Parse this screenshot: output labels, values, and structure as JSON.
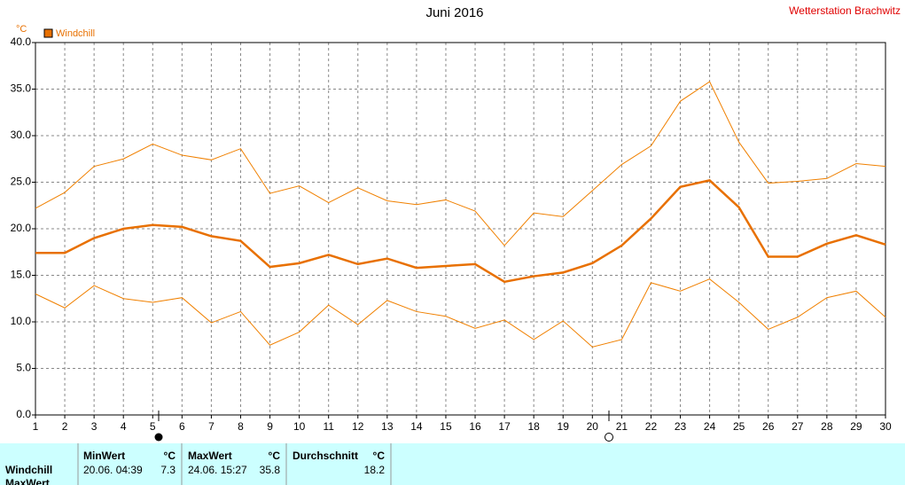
{
  "chart_data": {
    "type": "line",
    "title": "Juni 2016",
    "station": "Wetterstation Brachwitz",
    "y_unit": "°C",
    "x": [
      1,
      2,
      3,
      4,
      5,
      6,
      7,
      8,
      9,
      10,
      11,
      12,
      13,
      14,
      15,
      16,
      17,
      18,
      19,
      20,
      21,
      22,
      23,
      24,
      25,
      26,
      27,
      28,
      29,
      30
    ],
    "xlim": [
      1,
      30
    ],
    "xticks": [
      1,
      2,
      3,
      4,
      5,
      6,
      7,
      8,
      9,
      10,
      11,
      12,
      13,
      14,
      15,
      16,
      17,
      18,
      19,
      20,
      21,
      22,
      23,
      24,
      25,
      26,
      27,
      28,
      29,
      30
    ],
    "ylim": [
      0,
      40
    ],
    "yticks": [
      {
        "value": 0,
        "label": "0.0"
      },
      {
        "value": 5,
        "label": "5.0"
      },
      {
        "value": 10,
        "label": "10.0"
      },
      {
        "value": 15,
        "label": "15.0"
      },
      {
        "value": 20,
        "label": "20.0"
      },
      {
        "value": 25,
        "label": "25.0"
      },
      {
        "value": 30,
        "label": "30.0"
      },
      {
        "value": 35,
        "label": "35.0"
      },
      {
        "value": 40,
        "label": "40.0"
      }
    ],
    "grid": true,
    "legend": "top-left",
    "series": [
      {
        "color": "#f08000",
        "width": 1,
        "values": [
          22.2,
          23.9,
          26.7,
          27.5,
          29.1,
          27.9,
          27.4,
          28.6,
          23.8,
          24.6,
          22.8,
          24.4,
          23.0,
          22.6,
          23.1,
          21.9,
          18.2,
          21.7,
          21.3,
          24.1,
          26.9,
          28.9,
          33.7,
          35.8,
          29.3,
          24.9,
          25.1,
          25.4,
          27.0,
          26.7
        ]
      },
      {
        "name": "Windchill",
        "color": "#e87000",
        "width": 2.5,
        "values": [
          17.4,
          17.4,
          19.0,
          20.0,
          20.4,
          20.2,
          19.2,
          18.7,
          15.9,
          16.3,
          17.2,
          16.2,
          16.8,
          15.8,
          16.0,
          16.2,
          14.3,
          14.9,
          15.3,
          16.3,
          18.2,
          21.1,
          24.5,
          25.2,
          22.3,
          17.0,
          17.0,
          18.4,
          19.3,
          18.3
        ]
      },
      {
        "color": "#f08000",
        "width": 1,
        "values": [
          13.0,
          11.5,
          13.9,
          12.5,
          12.1,
          12.6,
          9.9,
          11.1,
          7.5,
          8.9,
          11.8,
          9.7,
          12.3,
          11.1,
          10.6,
          9.3,
          10.2,
          8.1,
          10.1,
          7.3,
          8.1,
          14.2,
          13.3,
          14.6,
          12.1,
          9.2,
          10.5,
          12.6,
          13.3,
          10.5
        ]
      }
    ]
  },
  "summary": {
    "row_labels": [
      "Windchill",
      "MaxWert"
    ],
    "columns": [
      {
        "header": "MinWert",
        "unit": "°C",
        "time": "20.06. 04:39",
        "value": 7.3
      },
      {
        "header": "MaxWert",
        "unit": "°C",
        "time": "24.06. 15:27",
        "value": 35.8
      },
      {
        "header": "Durchschnitt",
        "unit": "°C",
        "value": 18.2
      }
    ]
  }
}
